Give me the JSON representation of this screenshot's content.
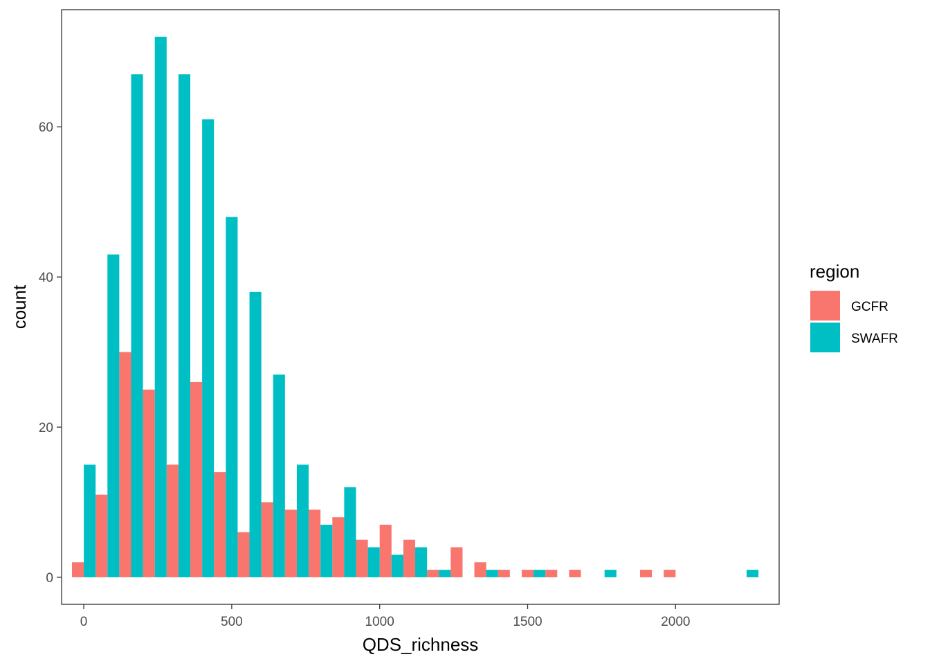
{
  "chart_data": {
    "type": "bar",
    "title": "",
    "xlabel": "QDS_richness",
    "ylabel": "count",
    "xlim": [
      -75,
      2350
    ],
    "ylim": [
      -3.6,
      75.6
    ],
    "xticks": [
      0,
      500,
      1000,
      1500,
      2000
    ],
    "xtick_labels": [
      "0",
      "500",
      "1000",
      "1500",
      "2000"
    ],
    "yticks": [
      0,
      20,
      40,
      60
    ],
    "ytick_labels": [
      "0",
      "20",
      "40",
      "60"
    ],
    "bin_width": 80,
    "bin_centers": [
      0,
      80,
      160,
      240,
      320,
      400,
      480,
      560,
      640,
      720,
      800,
      880,
      960,
      1040,
      1120,
      1200,
      1280,
      1360,
      1440,
      1520,
      1600,
      1680,
      1760,
      1840,
      1920,
      2000,
      2080,
      2160,
      2240
    ],
    "grid": false,
    "legend_position": "right",
    "legend": {
      "title": "region",
      "entries": [
        "GCFR",
        "SWAFR"
      ]
    },
    "series": [
      {
        "name": "GCFR",
        "color": "#F8766D",
        "values": [
          2,
          11,
          30,
          25,
          15,
          26,
          14,
          6,
          10,
          9,
          9,
          8,
          5,
          7,
          5,
          1,
          4,
          2,
          1,
          1,
          1,
          1,
          0,
          0,
          1,
          1,
          0,
          0,
          0
        ]
      },
      {
        "name": "SWAFR",
        "color": "#00BFC4",
        "values": [
          15,
          43,
          67,
          72,
          67,
          61,
          48,
          38,
          27,
          15,
          7,
          12,
          4,
          3,
          4,
          1,
          0,
          1,
          0,
          1,
          0,
          0,
          1,
          0,
          0,
          0,
          0,
          0,
          1
        ]
      }
    ]
  }
}
